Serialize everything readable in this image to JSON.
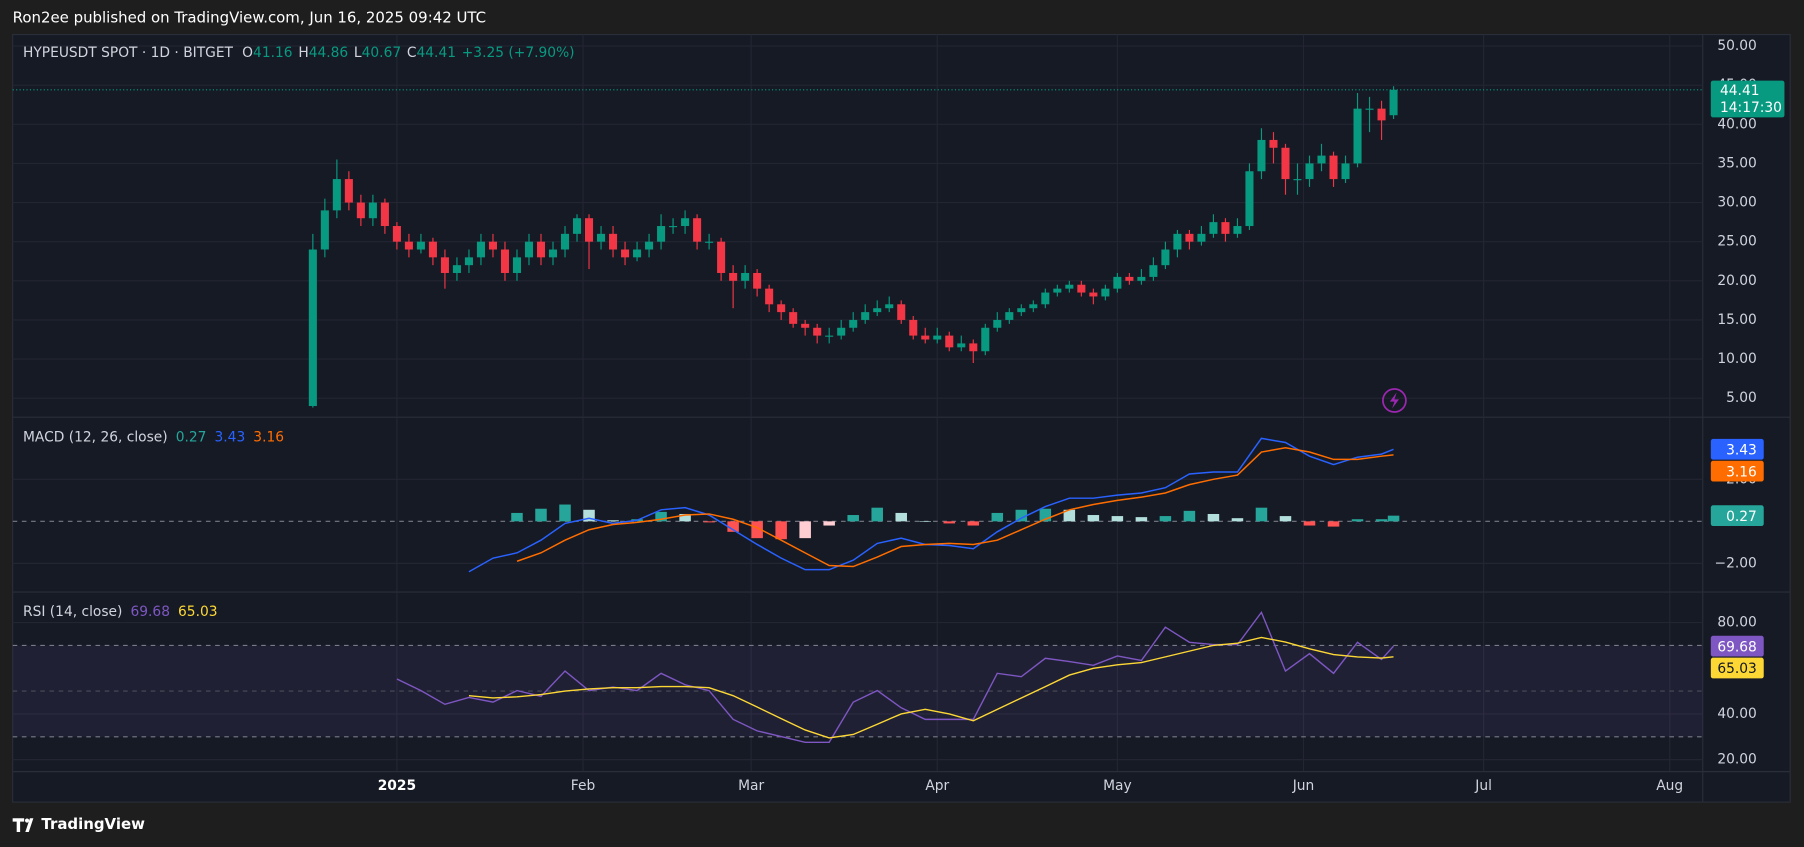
{
  "header": "Ron2ee published on TradingView.com, Jun 16, 2025 09:42 UTC",
  "footer": "TradingView",
  "chart_data": [
    {
      "type": "candlestick",
      "title": "HYPEUSDT SPOT · 1D · BITGET",
      "ohlc_legend": [
        {
          "key": "O",
          "value": "41.16"
        },
        {
          "key": "H",
          "value": "44.86"
        },
        {
          "key": "L",
          "value": "40.67"
        },
        {
          "key": "C",
          "value": "44.41"
        }
      ],
      "change": "+3.25 (+7.90%)",
      "last_label": "44.41",
      "countdown": "14:17:30",
      "up_color": "#089981",
      "down_color": "#f23645",
      "xlim": [
        -64,
        217.5
      ],
      "x": [
        -14,
        -12,
        -10,
        -8,
        -6,
        -4,
        -2,
        0,
        2,
        4,
        6,
        8,
        10,
        12,
        14,
        16,
        18,
        20,
        22,
        24,
        26,
        28,
        30,
        32,
        34,
        36,
        38,
        40,
        42,
        44,
        46,
        48,
        50,
        52,
        54,
        56,
        58,
        60,
        62,
        64,
        66,
        68,
        70,
        72,
        74,
        76,
        78,
        80,
        82,
        84,
        86,
        88,
        90,
        92,
        94,
        96,
        98,
        100,
        102,
        104,
        106,
        108,
        110,
        112,
        114,
        116,
        118,
        120,
        122,
        124,
        126,
        128,
        130,
        132,
        134,
        136,
        138,
        140,
        142,
        144,
        146,
        148,
        150,
        152,
        154,
        156,
        158,
        160,
        162,
        164,
        166
      ],
      "ohlc": [
        [
          4,
          26,
          3.8,
          24
        ],
        [
          24,
          30.5,
          23,
          29
        ],
        [
          29,
          35.5,
          28,
          33
        ],
        [
          33,
          34,
          29,
          30
        ],
        [
          30,
          31,
          27,
          28
        ],
        [
          28,
          31,
          27,
          30
        ],
        [
          30,
          30.5,
          26,
          27
        ],
        [
          27,
          27.5,
          24,
          25
        ],
        [
          25,
          26,
          23,
          24
        ],
        [
          24,
          26,
          23.5,
          25
        ],
        [
          25,
          25.5,
          22,
          23
        ],
        [
          23,
          24,
          19,
          21
        ],
        [
          21,
          23,
          20,
          22
        ],
        [
          22,
          24,
          21,
          23
        ],
        [
          23,
          26,
          22,
          25
        ],
        [
          25,
          26,
          23,
          24
        ],
        [
          24,
          25,
          20,
          21
        ],
        [
          21,
          24,
          20,
          23
        ],
        [
          23,
          26,
          22,
          25
        ],
        [
          25,
          26,
          22,
          23
        ],
        [
          23,
          25,
          22,
          24
        ],
        [
          24,
          27,
          23,
          26
        ],
        [
          26,
          28.5,
          25,
          28
        ],
        [
          28,
          28.5,
          21.5,
          25
        ],
        [
          25,
          27,
          24,
          26
        ],
        [
          26,
          27,
          23,
          24
        ],
        [
          24,
          25,
          22,
          23
        ],
        [
          23,
          25,
          22.5,
          24
        ],
        [
          24,
          26,
          23,
          25
        ],
        [
          25,
          28.5,
          24,
          27
        ],
        [
          27,
          28,
          26,
          27
        ],
        [
          27,
          29,
          26,
          28
        ],
        [
          28,
          28.5,
          24,
          25
        ],
        [
          25,
          26,
          24,
          25
        ],
        [
          25,
          25.5,
          20,
          21
        ],
        [
          21,
          22,
          16.5,
          20
        ],
        [
          20,
          22,
          19,
          21
        ],
        [
          21,
          21.5,
          18,
          19
        ],
        [
          19,
          19.5,
          16,
          17
        ],
        [
          17,
          17.5,
          15,
          16
        ],
        [
          16,
          16.5,
          14,
          14.5
        ],
        [
          14.5,
          15,
          13,
          14
        ],
        [
          14,
          14.5,
          12,
          13
        ],
        [
          13,
          14,
          12,
          13
        ],
        [
          13,
          15,
          12.5,
          14
        ],
        [
          14,
          16,
          13.5,
          15
        ],
        [
          15,
          17,
          14.5,
          16
        ],
        [
          16,
          17.5,
          15.5,
          16.5
        ],
        [
          16.5,
          18,
          16,
          17
        ],
        [
          17,
          17.5,
          14.5,
          15
        ],
        [
          15,
          15.5,
          12.5,
          13
        ],
        [
          13,
          14,
          12,
          12.5
        ],
        [
          12.5,
          14,
          12,
          13
        ],
        [
          13,
          13.5,
          11,
          11.5
        ],
        [
          11.5,
          13,
          11,
          12
        ],
        [
          12,
          12.5,
          9.5,
          11
        ],
        [
          11,
          14.5,
          10.5,
          14
        ],
        [
          14,
          16,
          13.5,
          15
        ],
        [
          15,
          16.5,
          14.5,
          16
        ],
        [
          16,
          17,
          15.5,
          16.5
        ],
        [
          16.5,
          17.5,
          16,
          17
        ],
        [
          17,
          19,
          16.5,
          18.5
        ],
        [
          18.5,
          19.5,
          18,
          19
        ],
        [
          19,
          20,
          18.5,
          19.5
        ],
        [
          19.5,
          20,
          18,
          18.5
        ],
        [
          18.5,
          19,
          17,
          18
        ],
        [
          18,
          19.5,
          17.5,
          19
        ],
        [
          19,
          21,
          18.5,
          20.5
        ],
        [
          20.5,
          21,
          19.5,
          20
        ],
        [
          20,
          21.5,
          19.5,
          20.5
        ],
        [
          20.5,
          23,
          20,
          22
        ],
        [
          22,
          25,
          21.5,
          24
        ],
        [
          24,
          26.5,
          23,
          26
        ],
        [
          26,
          26.5,
          24,
          25
        ],
        [
          25,
          27,
          24.5,
          26
        ],
        [
          26,
          28.5,
          25.5,
          27.5
        ],
        [
          27.5,
          28,
          25,
          26
        ],
        [
          26,
          28,
          25.5,
          27
        ],
        [
          27,
          35,
          26.5,
          34
        ],
        [
          34,
          39.5,
          33,
          38
        ],
        [
          38,
          39,
          35,
          37
        ],
        [
          37,
          37.5,
          31,
          33
        ],
        [
          33,
          35,
          31,
          33
        ],
        [
          33,
          36,
          32,
          35
        ],
        [
          35,
          37.5,
          34,
          36
        ],
        [
          36,
          36.5,
          32,
          33
        ],
        [
          33,
          36,
          32.5,
          35
        ],
        [
          35,
          44,
          34.5,
          42
        ],
        [
          42,
          43.5,
          39,
          42
        ],
        [
          42,
          43,
          38,
          40.5
        ],
        [
          41.16,
          44.86,
          40.67,
          44.41
        ]
      ],
      "ylim": [
        2.65,
        51.47
      ],
      "yticks": [
        {
          "value": 5,
          "label": "5.00"
        },
        {
          "value": 10,
          "label": "10.00"
        },
        {
          "value": 15,
          "label": "15.00"
        },
        {
          "value": 20,
          "label": "20.00"
        },
        {
          "value": 25,
          "label": "25.00"
        },
        {
          "value": 30,
          "label": "30.00"
        },
        {
          "value": 35,
          "label": "35.00"
        },
        {
          "value": 40,
          "label": "40.00"
        },
        {
          "value": 45,
          "label": "45.00"
        },
        {
          "value": 50,
          "label": "50.00"
        }
      ],
      "grid": true
    },
    {
      "type": "macd",
      "title": "MACD (12, 26, close)",
      "xlim": [
        -64,
        217.5
      ],
      "x": [
        12,
        16,
        20,
        24,
        28,
        32,
        36,
        40,
        44,
        48,
        52,
        56,
        60,
        64,
        68,
        72,
        76,
        80,
        84,
        88,
        92,
        96,
        100,
        104,
        108,
        112,
        116,
        120,
        124,
        128,
        132,
        136,
        140,
        144,
        148,
        152,
        156,
        160,
        164,
        166
      ],
      "series": [
        {
          "type": "bar",
          "last_label": "0.27",
          "color": "#26a69a",
          "colors": [
            "#26a69a",
            "#b2dfdb",
            "#ff5252",
            "#ffcdd2"
          ],
          "values": [
            null,
            null,
            0.4,
            0.6,
            0.8,
            0.55,
            0.05,
            0.1,
            0.45,
            0.35,
            -0.05,
            -0.5,
            -0.8,
            -0.85,
            -0.8,
            -0.2,
            0.3,
            0.65,
            0.4,
            0.0,
            -0.1,
            -0.2,
            0.4,
            0.55,
            0.6,
            0.55,
            0.3,
            0.25,
            0.2,
            0.25,
            0.5,
            0.35,
            0.15,
            0.65,
            0.25,
            -0.2,
            -0.25,
            0.1,
            0.1,
            0.27
          ]
        },
        {
          "type": "line",
          "last_label": "3.43",
          "color": "#2962ff",
          "values": [
            -2.4,
            -1.75,
            -1.5,
            -0.9,
            -0.1,
            0.15,
            -0.1,
            0.05,
            0.55,
            0.65,
            0.3,
            -0.4,
            -1.1,
            -1.75,
            -2.3,
            -2.3,
            -1.85,
            -1.05,
            -0.8,
            -1.1,
            -1.15,
            -1.3,
            -0.5,
            0.15,
            0.7,
            1.1,
            1.1,
            1.25,
            1.35,
            1.6,
            2.25,
            2.35,
            2.35,
            3.95,
            3.75,
            3.1,
            2.7,
            3.05,
            3.2,
            3.43
          ]
        },
        {
          "type": "line",
          "last_label": "3.16",
          "color": "#ff6d00",
          "values": [
            null,
            null,
            -1.9,
            -1.5,
            -0.9,
            -0.4,
            -0.15,
            -0.05,
            0.1,
            0.3,
            0.35,
            0.1,
            -0.3,
            -0.9,
            -1.5,
            -2.1,
            -2.15,
            -1.7,
            -1.2,
            -1.1,
            -1.05,
            -1.1,
            -0.9,
            -0.4,
            0.1,
            0.55,
            0.8,
            1.0,
            1.15,
            1.35,
            1.75,
            2.0,
            2.2,
            3.3,
            3.5,
            3.3,
            2.95,
            2.95,
            3.1,
            3.16
          ]
        }
      ],
      "baseline": 0,
      "ylim": [
        -3.34,
        4.93
      ],
      "yticks": [
        {
          "value": 2,
          "label": "2.00"
        },
        {
          "value": -2,
          "label": "−2.00"
        }
      ]
    },
    {
      "type": "line",
      "title": "RSI (14, close)",
      "xlim": [
        -64,
        217.5
      ],
      "x": [
        0,
        4,
        8,
        12,
        16,
        20,
        24,
        28,
        32,
        36,
        40,
        44,
        48,
        52,
        56,
        60,
        64,
        68,
        72,
        76,
        80,
        84,
        88,
        92,
        96,
        100,
        104,
        108,
        112,
        116,
        120,
        124,
        128,
        132,
        136,
        140,
        144,
        148,
        152,
        156,
        160,
        164,
        166
      ],
      "series": [
        {
          "last_label": "69.68",
          "color": "#7e57c2",
          "values": [
            55.3,
            50.2,
            44.2,
            47.2,
            45.2,
            50.2,
            47.7,
            58.8,
            50.2,
            51.8,
            50.2,
            57.8,
            52.8,
            50.2,
            37.6,
            32.6,
            30.1,
            27.6,
            27.6,
            45.2,
            50.2,
            42.7,
            37.6,
            37.6,
            37.6,
            57.8,
            56.3,
            64.4,
            62.9,
            61.3,
            65.4,
            63.4,
            78,
            71.4,
            70.4,
            70.4,
            84.5,
            58.8,
            66.4,
            57.8,
            71.4,
            63.9,
            69.68
          ]
        },
        {
          "last_label": "65.03",
          "color": "#fdd835",
          "values": [
            null,
            null,
            null,
            48,
            47,
            47.5,
            48.5,
            50,
            51,
            51.5,
            51.5,
            52,
            52,
            51.5,
            48,
            43,
            38,
            33,
            29.5,
            31,
            35.5,
            40,
            42,
            40,
            37,
            42,
            47,
            52,
            57,
            60,
            61.5,
            62.5,
            65,
            67.5,
            70,
            71,
            73.5,
            71.5,
            68.5,
            66,
            65,
            64.5,
            65.03
          ]
        }
      ],
      "bands": [
        70,
        30
      ],
      "midline": 50,
      "ylim": [
        15,
        93.1
      ],
      "yticks": [
        {
          "value": 20,
          "label": "20.00"
        },
        {
          "value": 40,
          "label": "40.00"
        },
        {
          "value": 80,
          "label": "80.00"
        }
      ],
      "xticks": [
        {
          "value": 0,
          "label": "2025"
        },
        {
          "value": 31,
          "label": "Feb"
        },
        {
          "value": 59,
          "label": "Mar"
        },
        {
          "value": 90,
          "label": "Apr"
        },
        {
          "value": 120,
          "label": "May"
        },
        {
          "value": 151,
          "label": "Jun"
        },
        {
          "value": 181,
          "label": "Jul"
        },
        {
          "value": 212,
          "label": "Aug"
        }
      ]
    }
  ]
}
